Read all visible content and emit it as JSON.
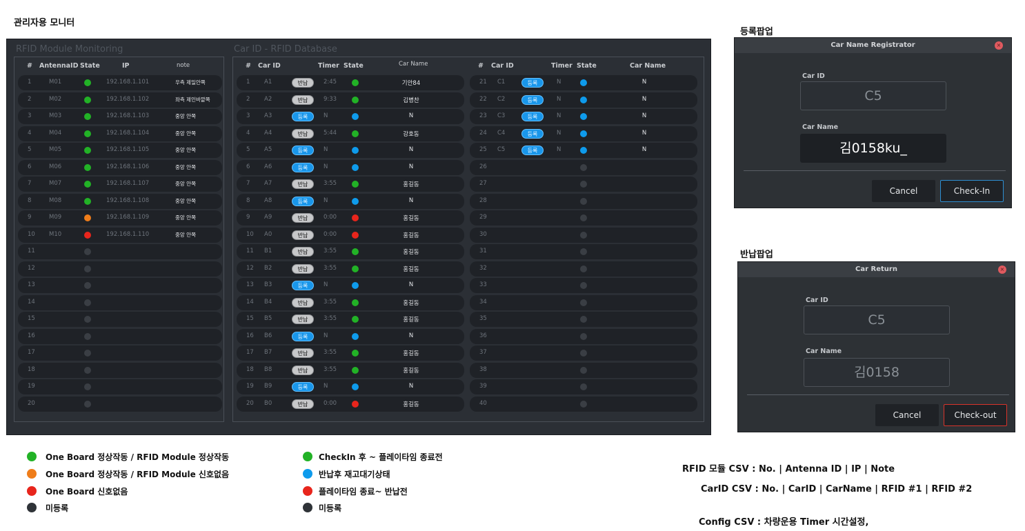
{
  "page_title": "관리자용 모니터",
  "rfid_section": {
    "title": "RFID Module Monitoring",
    "headers": [
      "#",
      "AntennaID",
      "State",
      "IP",
      "note"
    ],
    "rows": [
      {
        "no": "1",
        "id": "M01",
        "state": "green",
        "ip": "192.168.1.101",
        "note": "우측 제일안쪽"
      },
      {
        "no": "2",
        "id": "M02",
        "state": "green",
        "ip": "192.168.1.102",
        "note": "좌측 제인바깥쪽"
      },
      {
        "no": "3",
        "id": "M03",
        "state": "green",
        "ip": "192.168.1.103",
        "note": "중앙 안쪽"
      },
      {
        "no": "4",
        "id": "M04",
        "state": "green",
        "ip": "192.168.1.104",
        "note": "중앙 안쪽"
      },
      {
        "no": "5",
        "id": "M05",
        "state": "green",
        "ip": "192.168.1.105",
        "note": "중앙 안쪽"
      },
      {
        "no": "6",
        "id": "M06",
        "state": "green",
        "ip": "192.168.1.106",
        "note": "중앙 안쪽"
      },
      {
        "no": "7",
        "id": "M07",
        "state": "green",
        "ip": "192.168.1.107",
        "note": "중앙 안쪽"
      },
      {
        "no": "8",
        "id": "M08",
        "state": "green",
        "ip": "192.168.1.108",
        "note": "중앙 안쪽"
      },
      {
        "no": "9",
        "id": "M09",
        "state": "orange",
        "ip": "192.168.1.109",
        "note": "중앙 안쪽"
      },
      {
        "no": "10",
        "id": "M10",
        "state": "red",
        "ip": "192.168.1.110",
        "note": "중앙 안쪽"
      },
      {
        "no": "11",
        "id": "",
        "state": "gray",
        "ip": "",
        "note": ""
      },
      {
        "no": "12",
        "id": "",
        "state": "gray",
        "ip": "",
        "note": ""
      },
      {
        "no": "13",
        "id": "",
        "state": "gray",
        "ip": "",
        "note": ""
      },
      {
        "no": "14",
        "id": "",
        "state": "gray",
        "ip": "",
        "note": ""
      },
      {
        "no": "15",
        "id": "",
        "state": "gray",
        "ip": "",
        "note": ""
      },
      {
        "no": "16",
        "id": "",
        "state": "gray",
        "ip": "",
        "note": ""
      },
      {
        "no": "17",
        "id": "",
        "state": "gray",
        "ip": "",
        "note": ""
      },
      {
        "no": "18",
        "id": "",
        "state": "gray",
        "ip": "",
        "note": ""
      },
      {
        "no": "19",
        "id": "",
        "state": "gray",
        "ip": "",
        "note": ""
      },
      {
        "no": "20",
        "id": "",
        "state": "gray",
        "ip": "",
        "note": ""
      }
    ]
  },
  "car_section": {
    "title": "Car ID - RFID Database",
    "headers_a": [
      "#",
      "Car ID",
      "Timer",
      "State",
      "Car Name"
    ],
    "headers_b": [
      "#",
      "Car ID",
      "Timer",
      "State",
      "Car Name"
    ],
    "rows_a": [
      {
        "no": "1",
        "car": "A1",
        "badge": "반납",
        "timer": "2:45",
        "state": "green",
        "name": "기안84"
      },
      {
        "no": "2",
        "car": "A2",
        "badge": "반납",
        "timer": "9:33",
        "state": "green",
        "name": "김병찬"
      },
      {
        "no": "3",
        "car": "A3",
        "badge": "등록",
        "timer": "N",
        "state": "blue",
        "name": "N"
      },
      {
        "no": "4",
        "car": "A4",
        "badge": "반납",
        "timer": "5:44",
        "state": "green",
        "name": "강호동"
      },
      {
        "no": "5",
        "car": "A5",
        "badge": "등록",
        "timer": "N",
        "state": "blue",
        "name": "N"
      },
      {
        "no": "6",
        "car": "A6",
        "badge": "등록",
        "timer": "N",
        "state": "blue",
        "name": "N"
      },
      {
        "no": "7",
        "car": "A7",
        "badge": "반납",
        "timer": "3:55",
        "state": "green",
        "name": "홍길동"
      },
      {
        "no": "8",
        "car": "A8",
        "badge": "등록",
        "timer": "N",
        "state": "blue",
        "name": "N"
      },
      {
        "no": "9",
        "car": "A9",
        "badge": "반납",
        "timer": "0:00",
        "state": "red",
        "name": "홍길동"
      },
      {
        "no": "10",
        "car": "A0",
        "badge": "반납",
        "timer": "0:00",
        "state": "red",
        "name": "홍길동"
      },
      {
        "no": "11",
        "car": "B1",
        "badge": "반납",
        "timer": "3:55",
        "state": "green",
        "name": "홍길동"
      },
      {
        "no": "12",
        "car": "B2",
        "badge": "반납",
        "timer": "3:55",
        "state": "green",
        "name": "홍길동"
      },
      {
        "no": "13",
        "car": "B3",
        "badge": "등록",
        "timer": "N",
        "state": "blue",
        "name": "N"
      },
      {
        "no": "14",
        "car": "B4",
        "badge": "반납",
        "timer": "3:55",
        "state": "green",
        "name": "홍길동"
      },
      {
        "no": "15",
        "car": "B5",
        "badge": "반납",
        "timer": "3:55",
        "state": "green",
        "name": "홍길동"
      },
      {
        "no": "16",
        "car": "B6",
        "badge": "등록",
        "timer": "N",
        "state": "blue",
        "name": "N"
      },
      {
        "no": "17",
        "car": "B7",
        "badge": "반납",
        "timer": "3:55",
        "state": "green",
        "name": "홍길동"
      },
      {
        "no": "18",
        "car": "B8",
        "badge": "반납",
        "timer": "3:55",
        "state": "green",
        "name": "홍길동"
      },
      {
        "no": "19",
        "car": "B9",
        "badge": "등록",
        "timer": "N",
        "state": "blue",
        "name": "N"
      },
      {
        "no": "20",
        "car": "B0",
        "badge": "반납",
        "timer": "0:00",
        "state": "red",
        "name": "홍길동"
      }
    ],
    "rows_b": [
      {
        "no": "21",
        "car": "C1",
        "badge": "등록",
        "timer": "N",
        "state": "blue",
        "name": "N"
      },
      {
        "no": "22",
        "car": "C2",
        "badge": "등록",
        "timer": "N",
        "state": "blue",
        "name": "N"
      },
      {
        "no": "23",
        "car": "C3",
        "badge": "등록",
        "timer": "N",
        "state": "blue",
        "name": "N"
      },
      {
        "no": "24",
        "car": "C4",
        "badge": "등록",
        "timer": "N",
        "state": "blue",
        "name": "N"
      },
      {
        "no": "25",
        "car": "C5",
        "badge": "등록",
        "timer": "N",
        "state": "blue",
        "name": "N"
      },
      {
        "no": "26",
        "car": "",
        "badge": "",
        "timer": "",
        "state": "gray",
        "name": ""
      },
      {
        "no": "27",
        "car": "",
        "badge": "",
        "timer": "",
        "state": "gray",
        "name": ""
      },
      {
        "no": "28",
        "car": "",
        "badge": "",
        "timer": "",
        "state": "gray",
        "name": ""
      },
      {
        "no": "29",
        "car": "",
        "badge": "",
        "timer": "",
        "state": "gray",
        "name": ""
      },
      {
        "no": "30",
        "car": "",
        "badge": "",
        "timer": "",
        "state": "gray",
        "name": ""
      },
      {
        "no": "31",
        "car": "",
        "badge": "",
        "timer": "",
        "state": "gray",
        "name": ""
      },
      {
        "no": "32",
        "car": "",
        "badge": "",
        "timer": "",
        "state": "gray",
        "name": ""
      },
      {
        "no": "33",
        "car": "",
        "badge": "",
        "timer": "",
        "state": "gray",
        "name": ""
      },
      {
        "no": "34",
        "car": "",
        "badge": "",
        "timer": "",
        "state": "gray",
        "name": ""
      },
      {
        "no": "35",
        "car": "",
        "badge": "",
        "timer": "",
        "state": "gray",
        "name": ""
      },
      {
        "no": "36",
        "car": "",
        "badge": "",
        "timer": "",
        "state": "gray",
        "name": ""
      },
      {
        "no": "37",
        "car": "",
        "badge": "",
        "timer": "",
        "state": "gray",
        "name": ""
      },
      {
        "no": "38",
        "car": "",
        "badge": "",
        "timer": "",
        "state": "gray",
        "name": ""
      },
      {
        "no": "39",
        "car": "",
        "badge": "",
        "timer": "",
        "state": "gray",
        "name": ""
      },
      {
        "no": "40",
        "car": "",
        "badge": "",
        "timer": "",
        "state": "gray",
        "name": ""
      }
    ]
  },
  "register_popup": {
    "section_label": "등록팝업",
    "title": "Car Name Registrator",
    "car_id_label": "Car ID",
    "car_id_value": "C5",
    "car_name_label": "Car Name",
    "car_name_value": "김0158ku_",
    "cancel_label": "Cancel",
    "confirm_label": "Check-In"
  },
  "return_popup": {
    "section_label": "반납팝업",
    "title": "Car Return",
    "car_id_label": "Car ID",
    "car_id_value": "C5",
    "car_name_label": "Car Name",
    "car_name_value": "김0158",
    "cancel_label": "Cancel",
    "confirm_label": "Check-out"
  },
  "legend_left": [
    {
      "color": "green",
      "text": "One Board 정상작동 / RFID Module 정상작동"
    },
    {
      "color": "orange",
      "text": "One Board 정상작동 / RFID Module 신호없음"
    },
    {
      "color": "red",
      "text": "One Board 신호없음"
    },
    {
      "color": "gray",
      "text": "미등록"
    }
  ],
  "legend_right": [
    {
      "color": "green",
      "text": "CheckIn 후 ~ 플레이타임 종료전"
    },
    {
      "color": "blue",
      "text": "반납후 재고대기상태"
    },
    {
      "color": "red",
      "text": "플레이타임 종료~ 반납전"
    },
    {
      "color": "gray",
      "text": "미등록"
    }
  ],
  "csv_notes": {
    "rfid": "RFID 모듈 CSV : No. | Antenna ID | IP | Note",
    "carid": "CarID CSV : No. | CarID | CarName | RFID #1 | RFID #2",
    "config": "Config CSV : 차량운용 Timer 시간설정,"
  },
  "colors": {
    "green": "#22b226",
    "orange": "#ef7d1a",
    "red": "#e8251c",
    "blue": "#0e9bec",
    "gray": "#3a3e44",
    "legend_gray": "#2f3338"
  }
}
